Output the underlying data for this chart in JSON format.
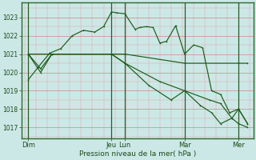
{
  "xlabel": "Pression niveau de la mer( hPa )",
  "ylim": [
    1016.4,
    1023.8
  ],
  "yticks": [
    1017,
    1018,
    1019,
    1020,
    1021,
    1022,
    1023
  ],
  "bg_color": "#cce8e6",
  "line_color": "#1a5c1a",
  "grid_major_color": "#cc8888",
  "grid_minor_color": "#ddaaaa",
  "xlim": [
    -0.15,
    10.15
  ],
  "day_vline_positions": [
    0.15,
    3.85,
    4.45,
    7.1,
    9.5
  ],
  "xtick_positions": [
    0.15,
    3.85,
    4.45,
    7.1,
    9.5
  ],
  "xtick_labels": [
    "Dim",
    "Jeu",
    "Lun",
    "Mar",
    "Mer"
  ],
  "lines": [
    {
      "x": [
        0.15,
        0.6,
        1.1,
        1.6,
        2.1,
        2.6,
        3.1,
        3.5,
        3.85,
        4.1,
        4.45,
        4.9,
        5.1,
        5.4,
        5.7,
        6.0,
        6.3,
        6.7,
        7.1,
        7.5,
        7.9,
        8.3,
        8.7,
        9.1,
        9.5,
        9.9
      ],
      "y": [
        1019.6,
        1020.3,
        1021.05,
        1021.3,
        1022.0,
        1022.3,
        1022.2,
        1022.5,
        1023.3,
        1023.25,
        1023.2,
        1022.35,
        1022.45,
        1022.5,
        1022.45,
        1021.6,
        1021.7,
        1022.55,
        1021.0,
        1021.5,
        1021.35,
        1019.0,
        1018.8,
        1017.8,
        1018.0,
        1017.2
      ]
    },
    {
      "x": [
        0.15,
        3.85,
        4.45,
        7.1,
        9.5,
        9.9
      ],
      "y": [
        1021.0,
        1021.0,
        1021.0,
        1020.5,
        1020.5,
        1020.5
      ]
    },
    {
      "x": [
        0.15,
        0.7,
        1.2,
        3.85,
        4.45,
        6.0,
        7.1,
        8.2,
        8.7,
        9.2,
        9.5,
        9.9
      ],
      "y": [
        1021.0,
        1020.2,
        1021.0,
        1021.0,
        1020.5,
        1019.5,
        1019.0,
        1018.5,
        1018.3,
        1017.5,
        1017.2,
        1017.0
      ]
    },
    {
      "x": [
        0.15,
        0.7,
        1.2,
        3.85,
        4.45,
        5.5,
        6.5,
        7.1,
        7.8,
        8.3,
        8.7,
        9.2,
        9.5,
        9.9
      ],
      "y": [
        1021.0,
        1020.0,
        1021.0,
        1021.0,
        1020.5,
        1019.3,
        1018.5,
        1019.0,
        1018.2,
        1017.8,
        1017.2,
        1017.5,
        1018.0,
        1017.2
      ]
    }
  ]
}
